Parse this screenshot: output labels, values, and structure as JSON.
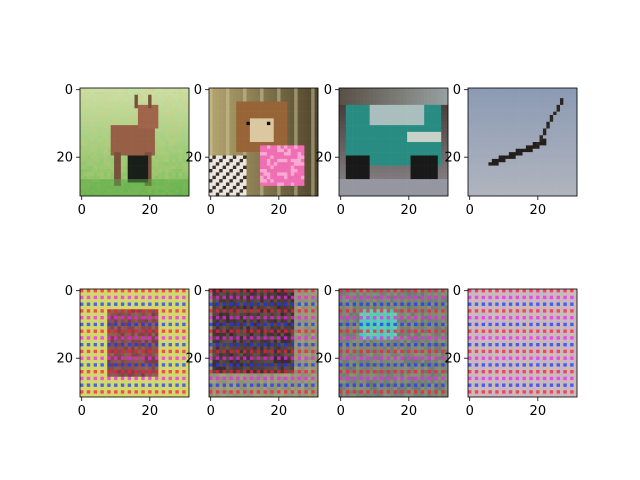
{
  "figure": {
    "background": "#ffffff"
  },
  "chart_data": [
    {
      "type": "heatmap",
      "row": 0,
      "col": 0,
      "content": "deer",
      "colormap": "rgb",
      "resolution": [
        32,
        32
      ],
      "xlim": [
        0,
        31
      ],
      "ylim": [
        31,
        0
      ],
      "xticks": [
        0,
        20
      ],
      "yticks": [
        0,
        20
      ],
      "xtick_labels": [
        "0",
        "20"
      ],
      "ytick_labels": [
        "0",
        "20"
      ]
    },
    {
      "type": "heatmap",
      "row": 0,
      "col": 1,
      "content": "dog with pink flowers",
      "colormap": "rgb",
      "resolution": [
        32,
        32
      ],
      "xlim": [
        0,
        31
      ],
      "ylim": [
        31,
        0
      ],
      "xticks": [
        0,
        20
      ],
      "yticks": [
        0,
        20
      ],
      "xtick_labels": [
        "0",
        "20"
      ],
      "ytick_labels": [
        "0",
        "20"
      ]
    },
    {
      "type": "heatmap",
      "row": 0,
      "col": 2,
      "content": "teal jeep",
      "colormap": "rgb",
      "resolution": [
        32,
        32
      ],
      "xlim": [
        0,
        31
      ],
      "ylim": [
        31,
        0
      ],
      "xticks": [
        0,
        20
      ],
      "yticks": [
        0,
        20
      ],
      "xtick_labels": [
        "0",
        "20"
      ],
      "ytick_labels": [
        "0",
        "20"
      ]
    },
    {
      "type": "heatmap",
      "row": 0,
      "col": 3,
      "content": "bird in sky",
      "colormap": "rgb",
      "resolution": [
        32,
        32
      ],
      "xlim": [
        0,
        31
      ],
      "ylim": [
        31,
        0
      ],
      "xticks": [
        0,
        20
      ],
      "yticks": [
        0,
        20
      ],
      "xtick_labels": [
        "0",
        "20"
      ],
      "ytick_labels": [
        "0",
        "20"
      ]
    },
    {
      "type": "heatmap",
      "row": 1,
      "col": 0,
      "content": "noisy reconstruction of deer",
      "colormap": "rgb",
      "resolution": [
        32,
        32
      ],
      "xlim": [
        0,
        31
      ],
      "ylim": [
        31,
        0
      ],
      "xticks": [
        0,
        20
      ],
      "yticks": [
        0,
        20
      ],
      "xtick_labels": [
        "0",
        "20"
      ],
      "ytick_labels": [
        "0",
        "20"
      ]
    },
    {
      "type": "heatmap",
      "row": 1,
      "col": 1,
      "content": "noisy reconstruction of dog",
      "colormap": "rgb",
      "resolution": [
        32,
        32
      ],
      "xlim": [
        0,
        31
      ],
      "ylim": [
        31,
        0
      ],
      "xticks": [
        0,
        20
      ],
      "yticks": [
        0,
        20
      ],
      "xtick_labels": [
        "0",
        "20"
      ],
      "ytick_labels": [
        "0",
        "20"
      ]
    },
    {
      "type": "heatmap",
      "row": 1,
      "col": 2,
      "content": "noisy reconstruction of jeep",
      "colormap": "rgb",
      "resolution": [
        32,
        32
      ],
      "xlim": [
        0,
        31
      ],
      "ylim": [
        31,
        0
      ],
      "xticks": [
        0,
        20
      ],
      "yticks": [
        0,
        20
      ],
      "xtick_labels": [
        "0",
        "20"
      ],
      "ytick_labels": [
        "0",
        "20"
      ]
    },
    {
      "type": "heatmap",
      "row": 1,
      "col": 3,
      "content": "noisy reconstruction of bird",
      "colormap": "rgb",
      "resolution": [
        32,
        32
      ],
      "xlim": [
        0,
        31
      ],
      "ylim": [
        31,
        0
      ],
      "xticks": [
        0,
        20
      ],
      "yticks": [
        0,
        20
      ],
      "xtick_labels": [
        "0",
        "20"
      ],
      "ytick_labels": [
        "0",
        "20"
      ]
    }
  ]
}
